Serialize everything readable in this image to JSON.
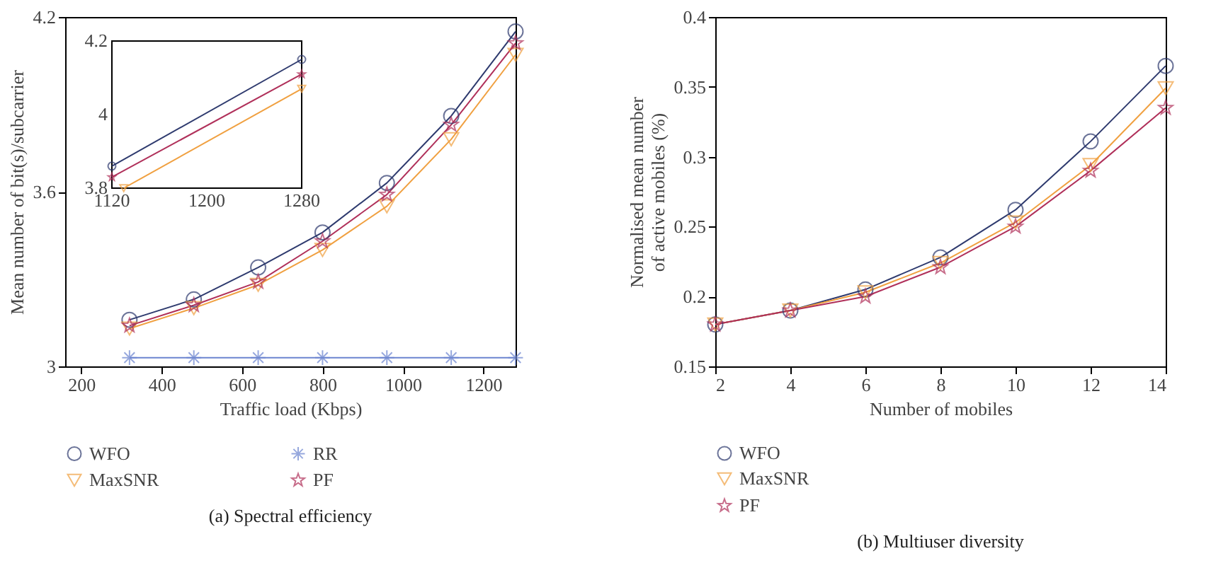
{
  "chart_data": [
    {
      "type": "line",
      "xlabel": "Traffic load (Kbps)",
      "ylabel": "Mean number of bit(s)/subcarrier",
      "xlim": [
        160,
        1280
      ],
      "xticks": [
        200,
        400,
        600,
        800,
        1000,
        1200
      ],
      "ylim": [
        3,
        4.2
      ],
      "yticks": [
        3,
        3.6,
        4.2
      ],
      "grid": false,
      "legend": "bottom",
      "line_style": "solid",
      "annotations": [
        "(a)  Spectral efficiency"
      ],
      "x": [
        320,
        480,
        640,
        800,
        960,
        1120,
        1280
      ],
      "series": [
        {
          "name": "WFO",
          "color": "#2e3a6e",
          "marker": "circle",
          "values": [
            3.16,
            3.23,
            3.34,
            3.46,
            3.63,
            3.86,
            4.15
          ]
        },
        {
          "name": "MaxSNR",
          "color": "#f0a040",
          "marker": "triangle",
          "values": [
            3.13,
            3.2,
            3.28,
            3.4,
            3.55,
            3.78,
            4.07
          ]
        },
        {
          "name": "RR",
          "color": "#6b84d0",
          "marker": "cross",
          "values": [
            3.03,
            3.03,
            3.03,
            3.03,
            3.03,
            3.03,
            3.03
          ]
        },
        {
          "name": "PF",
          "color": "#b0305a",
          "marker": "star",
          "values": [
            3.14,
            3.21,
            3.29,
            3.43,
            3.59,
            3.83,
            4.11
          ]
        }
      ]
    },
    {
      "type": "line",
      "xlim": [
        1120,
        1280
      ],
      "xticks": [
        1120,
        1200,
        1280
      ],
      "ylim": [
        3.8,
        4.2
      ],
      "yticks": [
        3.8,
        4,
        4.2
      ],
      "grid": false,
      "line_style": "solid",
      "series": [
        {
          "color": "#2e3a6e",
          "marker": "circle",
          "x": [
            1120,
            1280
          ],
          "values": [
            3.86,
            4.15
          ]
        },
        {
          "color": "#b0305a",
          "marker": "star",
          "x": [
            1120,
            1280
          ],
          "values": [
            3.83,
            4.11
          ]
        },
        {
          "color": "#f0a040",
          "marker": "triangle",
          "x": [
            1130,
            1280
          ],
          "values": [
            3.8,
            4.07
          ]
        }
      ]
    },
    {
      "type": "line",
      "xlabel": "Number of mobiles",
      "ylabel": "Normalised mean number\nof active mobiles (%)",
      "xlim": [
        2,
        14
      ],
      "xticks": [
        2,
        4,
        6,
        8,
        10,
        12,
        14
      ],
      "ylim": [
        0.15,
        0.4
      ],
      "yticks": [
        0.15,
        0.2,
        0.25,
        0.3,
        0.35,
        0.4
      ],
      "grid": false,
      "legend": "bottom",
      "line_style": "solid",
      "annotations": [
        "(b)  Multiuser diversity"
      ],
      "x": [
        2,
        4,
        6,
        8,
        10,
        12,
        14
      ],
      "series": [
        {
          "name": "WFO",
          "color": "#2e3a6e",
          "marker": "circle",
          "values": [
            0.18,
            0.19,
            0.205,
            0.228,
            0.262,
            0.311,
            0.365
          ]
        },
        {
          "name": "MaxSNR",
          "color": "#f0a040",
          "marker": "triangle",
          "values": [
            0.18,
            0.19,
            0.203,
            0.224,
            0.253,
            0.294,
            0.349
          ]
        },
        {
          "name": "PF",
          "color": "#b0305a",
          "marker": "star",
          "values": [
            0.18,
            0.19,
            0.2,
            0.221,
            0.25,
            0.29,
            0.335
          ]
        }
      ]
    }
  ]
}
